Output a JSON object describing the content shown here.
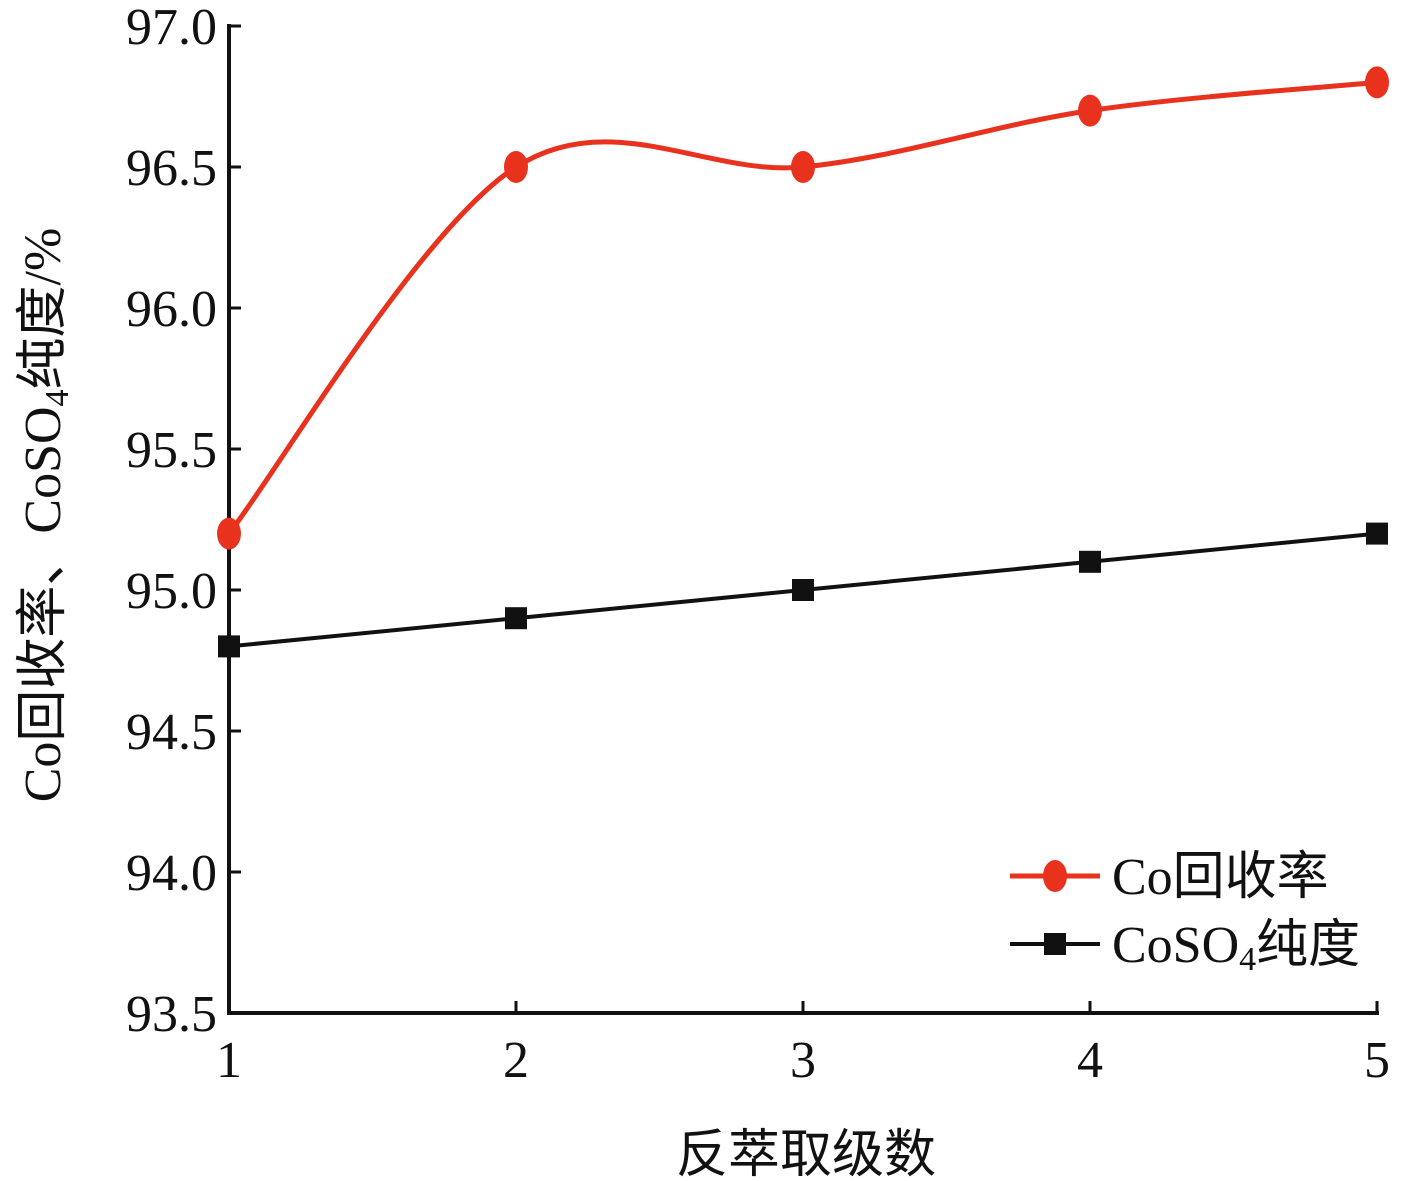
{
  "chart_data": {
    "type": "line",
    "x": [
      1,
      2,
      3,
      4,
      5
    ],
    "xticks": [
      "1",
      "2",
      "3",
      "4",
      "5"
    ],
    "xlim": [
      1,
      5
    ],
    "ylim": [
      93.5,
      97.0
    ],
    "yticks": [
      "93.5",
      "94.0",
      "94.5",
      "95.0",
      "95.5",
      "96.0",
      "96.5",
      "97.0"
    ],
    "yticks_values": [
      93.5,
      94.0,
      94.5,
      95.0,
      95.5,
      96.0,
      96.5,
      97.0
    ],
    "xlabel": "反萃取级数",
    "ylabel": {
      "part1": "Co回收率、CoSO",
      "sub": "4",
      "part2": "纯度/%"
    },
    "grid": false,
    "legend_position": "bottom-right",
    "series": [
      {
        "name": "Co回收率",
        "legend_label": {
          "main": "Co回收率",
          "sub": "",
          "after": ""
        },
        "values": [
          95.2,
          96.5,
          96.5,
          96.7,
          96.8
        ],
        "color": "#e8321e",
        "marker": "circle",
        "smooth": true
      },
      {
        "name": "CoSO4纯度",
        "legend_label": {
          "main": "CoSO",
          "sub": "4",
          "after": "纯度"
        },
        "values": [
          94.8,
          94.9,
          95.0,
          95.1,
          95.2
        ],
        "color": "#111111",
        "marker": "square",
        "smooth": false
      }
    ]
  }
}
